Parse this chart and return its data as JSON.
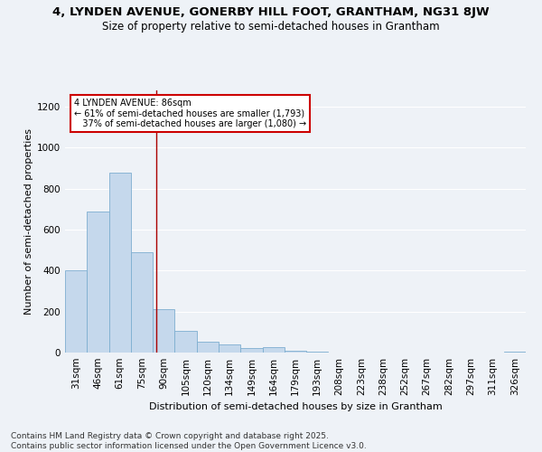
{
  "title1": "4, LYNDEN AVENUE, GONERBY HILL FOOT, GRANTHAM, NG31 8JW",
  "title2": "Size of property relative to semi-detached houses in Grantham",
  "xlabel": "Distribution of semi-detached houses by size in Grantham",
  "ylabel": "Number of semi-detached properties",
  "bins": [
    "31sqm",
    "46sqm",
    "61sqm",
    "75sqm",
    "90sqm",
    "105sqm",
    "120sqm",
    "134sqm",
    "149sqm",
    "164sqm",
    "179sqm",
    "193sqm",
    "208sqm",
    "223sqm",
    "238sqm",
    "252sqm",
    "267sqm",
    "282sqm",
    "297sqm",
    "311sqm",
    "326sqm"
  ],
  "values": [
    400,
    690,
    880,
    490,
    210,
    105,
    55,
    40,
    22,
    27,
    8,
    5,
    2,
    2,
    2,
    2,
    2,
    2,
    2,
    2,
    3
  ],
  "bar_color": "#c5d8ec",
  "bar_edge_color": "#7eaed0",
  "red_line_bin_index": 4,
  "annotation_text": "4 LYNDEN AVENUE: 86sqm\n← 61% of semi-detached houses are smaller (1,793)\n   37% of semi-detached houses are larger (1,080) →",
  "annotation_box_color": "#ffffff",
  "annotation_box_edge": "#cc0000",
  "ylim": [
    0,
    1280
  ],
  "yticks": [
    0,
    200,
    400,
    600,
    800,
    1000,
    1200
  ],
  "background_color": "#eef2f7",
  "grid_color": "#ffffff",
  "footnote": "Contains HM Land Registry data © Crown copyright and database right 2025.\nContains public sector information licensed under the Open Government Licence v3.0.",
  "title1_fontsize": 9.5,
  "title2_fontsize": 8.5,
  "xlabel_fontsize": 8,
  "ylabel_fontsize": 8,
  "footnote_fontsize": 6.5,
  "tick_fontsize": 7.5
}
